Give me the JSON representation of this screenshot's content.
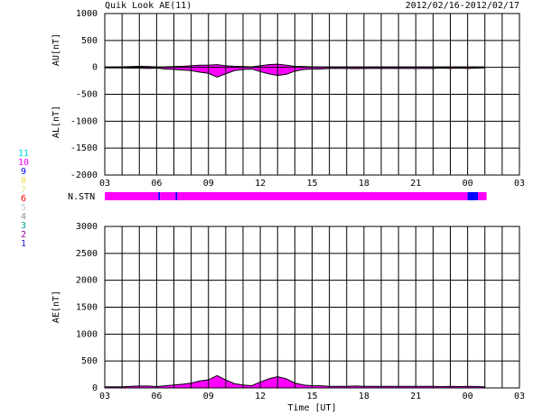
{
  "header": {
    "title": "Quik Look AE(11)",
    "date": "2012/02/16-2012/02/17"
  },
  "chart_data": [
    {
      "type": "area",
      "ylabels": [
        "AU[nT]",
        "AL[nT]"
      ],
      "x": [
        0,
        0.5,
        1,
        1.5,
        2,
        2.5,
        3,
        3.5,
        4,
        4.5,
        5,
        5.5,
        6,
        6.5,
        7,
        7.5,
        8,
        8.5,
        9,
        9.5,
        10,
        10.5,
        11,
        11.5,
        12,
        12.5,
        13,
        13.5,
        14,
        14.5,
        15,
        15.5,
        16,
        16.5,
        17,
        17.5,
        18,
        18.5,
        19,
        19.5,
        20,
        20.5,
        21,
        21.5,
        22
      ],
      "series": [
        {
          "color": "#ff00ff",
          "values": [
            10,
            10,
            10,
            15,
            20,
            15,
            10,
            10,
            15,
            20,
            30,
            40,
            40,
            50,
            30,
            20,
            15,
            10,
            30,
            50,
            60,
            40,
            20,
            15,
            10,
            10,
            10,
            10,
            10,
            10,
            10,
            10,
            10,
            10,
            10,
            10,
            10,
            10,
            10,
            10,
            10,
            10,
            10,
            10,
            10
          ]
        },
        {
          "color": "#ff00ff",
          "values": [
            -10,
            -10,
            -10,
            -15,
            -15,
            -20,
            -15,
            -30,
            -40,
            -50,
            -60,
            -90,
            -110,
            -180,
            -120,
            -60,
            -40,
            -30,
            -80,
            -120,
            -150,
            -130,
            -70,
            -40,
            -30,
            -30,
            -20,
            -20,
            -20,
            -25,
            -20,
            -20,
            -20,
            -20,
            -20,
            -20,
            -20,
            -20,
            -20,
            -15,
            -20,
            -15,
            -20,
            -15,
            -10
          ]
        }
      ],
      "xlim": [
        0,
        24
      ],
      "xticks": [
        {
          "value": 0,
          "label": "03"
        },
        {
          "value": 3,
          "label": "06"
        },
        {
          "value": 6,
          "label": "09"
        },
        {
          "value": 9,
          "label": "12"
        },
        {
          "value": 12,
          "label": "15"
        },
        {
          "value": 15,
          "label": "18"
        },
        {
          "value": 18,
          "label": "21"
        },
        {
          "value": 21,
          "label": "00"
        },
        {
          "value": 24,
          "label": "03"
        }
      ],
      "xgrid": [
        0,
        1,
        2,
        3,
        4,
        5,
        6,
        7,
        8,
        9,
        10,
        11,
        12,
        13,
        14,
        15,
        16,
        17,
        18,
        19,
        20,
        21,
        22,
        23,
        24
      ],
      "ylim": [
        -2000,
        1000
      ],
      "yticks": [
        1000,
        500,
        0,
        -500,
        -1000,
        -1500,
        -2000
      ],
      "grid": true
    },
    {
      "type": "area",
      "ylabels": [
        "AE[nT]"
      ],
      "xlabel": "Time [UT]",
      "x": [
        0,
        0.5,
        1,
        1.5,
        2,
        2.5,
        3,
        3.5,
        4,
        4.5,
        5,
        5.5,
        6,
        6.5,
        7,
        7.5,
        8,
        8.5,
        9,
        9.5,
        10,
        10.5,
        11,
        11.5,
        12,
        12.5,
        13,
        13.5,
        14,
        14.5,
        15,
        15.5,
        16,
        16.5,
        17,
        17.5,
        18,
        18.5,
        19,
        19.5,
        20,
        20.5,
        21,
        21.5,
        22
      ],
      "series": [
        {
          "color": "#ff00ff",
          "values": [
            20,
            20,
            20,
            30,
            35,
            35,
            25,
            40,
            55,
            70,
            90,
            130,
            150,
            230,
            150,
            80,
            55,
            40,
            110,
            170,
            210,
            170,
            90,
            55,
            40,
            40,
            30,
            30,
            30,
            35,
            30,
            30,
            30,
            30,
            30,
            30,
            30,
            30,
            30,
            25,
            30,
            25,
            30,
            25,
            20
          ]
        }
      ],
      "xlim": [
        0,
        24
      ],
      "xticks": [
        {
          "value": 0,
          "label": "03"
        },
        {
          "value": 3,
          "label": "06"
        },
        {
          "value": 6,
          "label": "09"
        },
        {
          "value": 9,
          "label": "12"
        },
        {
          "value": 12,
          "label": "15"
        },
        {
          "value": 15,
          "label": "18"
        },
        {
          "value": 18,
          "label": "21"
        },
        {
          "value": 21,
          "label": "00"
        },
        {
          "value": 24,
          "label": "03"
        }
      ],
      "xgrid": [
        0,
        1,
        2,
        3,
        4,
        5,
        6,
        7,
        8,
        9,
        10,
        11,
        12,
        13,
        14,
        15,
        16,
        17,
        18,
        19,
        20,
        21,
        22,
        23,
        24
      ],
      "ylim": [
        0,
        3000
      ],
      "yticks": [
        3000,
        2500,
        2000,
        1500,
        1000,
        500,
        0
      ],
      "grid": true
    }
  ],
  "stations": {
    "label": "N.STN",
    "legend": [
      {
        "label": "11",
        "color": "#00e0e0"
      },
      {
        "label": "10",
        "color": "#ff00ff"
      },
      {
        "label": "9",
        "color": "#0000ff"
      },
      {
        "label": "8",
        "color": "#f0e060"
      },
      {
        "label": "7",
        "color": "#d8f080"
      },
      {
        "label": "6",
        "color": "#ff0000"
      },
      {
        "label": "5",
        "color": "#c8c8c8"
      },
      {
        "label": "4",
        "color": "#909090"
      },
      {
        "label": "3",
        "color": "#00a0a0"
      },
      {
        "label": "2",
        "color": "#a000a0"
      },
      {
        "label": "1",
        "color": "#2020c0"
      }
    ],
    "segments": [
      {
        "start": 0,
        "end": 3.1,
        "count": 10
      },
      {
        "start": 3.1,
        "end": 3.2,
        "count": 9
      },
      {
        "start": 3.2,
        "end": 4.1,
        "count": 10
      },
      {
        "start": 4.1,
        "end": 4.2,
        "count": 9
      },
      {
        "start": 4.2,
        "end": 21.0,
        "count": 10
      },
      {
        "start": 21.0,
        "end": 21.6,
        "count": 9
      },
      {
        "start": 21.6,
        "end": 22.1,
        "count": 10
      }
    ]
  }
}
